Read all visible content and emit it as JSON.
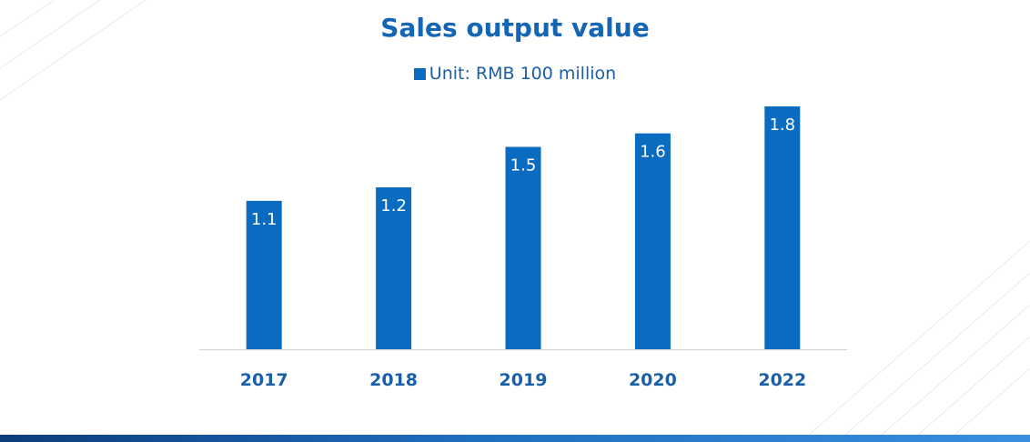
{
  "colors": {
    "bar": "#0a6cc1",
    "title": "#1565b5",
    "tick_label": "#1a5fa8",
    "data_label": "#ffffff",
    "axis": "#d0d5db"
  },
  "chart_data": {
    "type": "bar",
    "title": "Sales output value",
    "legend_label": "Unit: RMB 100 million",
    "legend_position": "top-center",
    "categories": [
      "2017",
      "2018",
      "2019",
      "2020",
      "2022"
    ],
    "values": [
      1.1,
      1.2,
      1.5,
      1.6,
      1.8
    ],
    "ylim": [
      0,
      1.8
    ],
    "grid": false
  }
}
